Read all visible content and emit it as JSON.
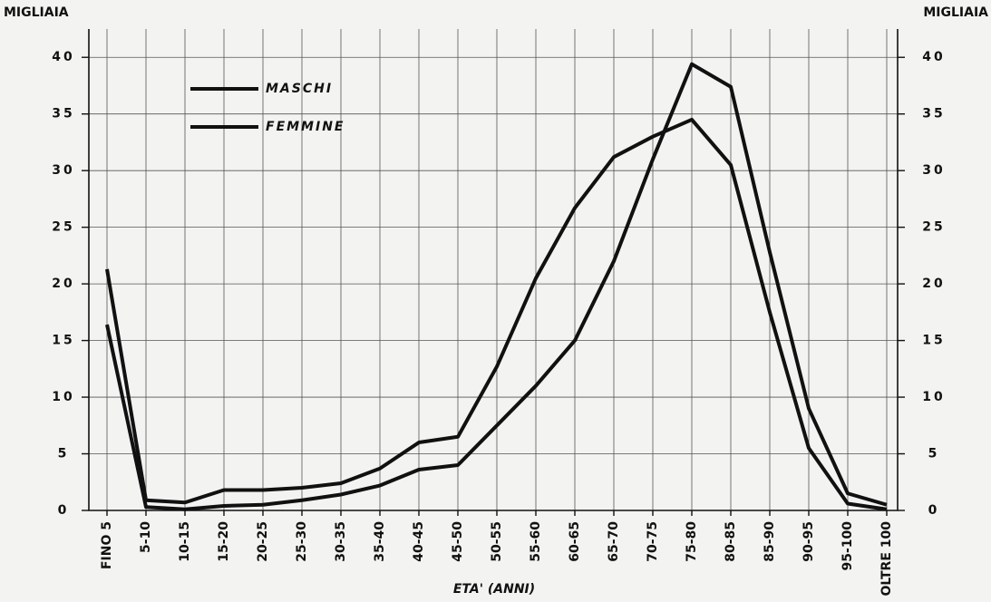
{
  "chart_data": {
    "type": "line",
    "y_label": "MIGLIAIA",
    "y2_label": "MIGLIAIA",
    "x_label": "ETA' (ANNI)",
    "categories": [
      "FINO 5",
      "5-10",
      "10-15",
      "15-20",
      "20-25",
      "25-30",
      "30-35",
      "35-40",
      "40-45",
      "45-50",
      "50-55",
      "55-60",
      "60-65",
      "65-70",
      "70-75",
      "75-80",
      "80-85",
      "85-90",
      "90-95",
      "95-100",
      "OLTRE 100"
    ],
    "series": [
      {
        "name": "MASCHI",
        "color": "#111111",
        "values": [
          21.3,
          0.9,
          0.7,
          1.8,
          1.8,
          2.0,
          2.4,
          3.7,
          6.0,
          6.5,
          12.7,
          20.5,
          26.7,
          31.2,
          33.0,
          34.5,
          30.5,
          17.5,
          5.5,
          0.6,
          0.1
        ]
      },
      {
        "name": "FEMMINE",
        "color": "#111111",
        "values": [
          16.4,
          0.3,
          0.1,
          0.4,
          0.5,
          0.9,
          1.4,
          2.2,
          3.6,
          4.0,
          7.5,
          11.0,
          15.0,
          22.0,
          31.0,
          39.4,
          37.4,
          22.8,
          9.0,
          1.5,
          0.5
        ]
      }
    ],
    "ylim": [
      0,
      42.5
    ],
    "yticks": [
      0,
      5,
      10,
      15,
      20,
      25,
      30,
      35,
      40
    ],
    "y2lim": [
      0,
      42.5
    ],
    "y2ticks": [
      0,
      5,
      10,
      15,
      20,
      25,
      30,
      35,
      40
    ],
    "grid": true,
    "legend": "upper left"
  }
}
